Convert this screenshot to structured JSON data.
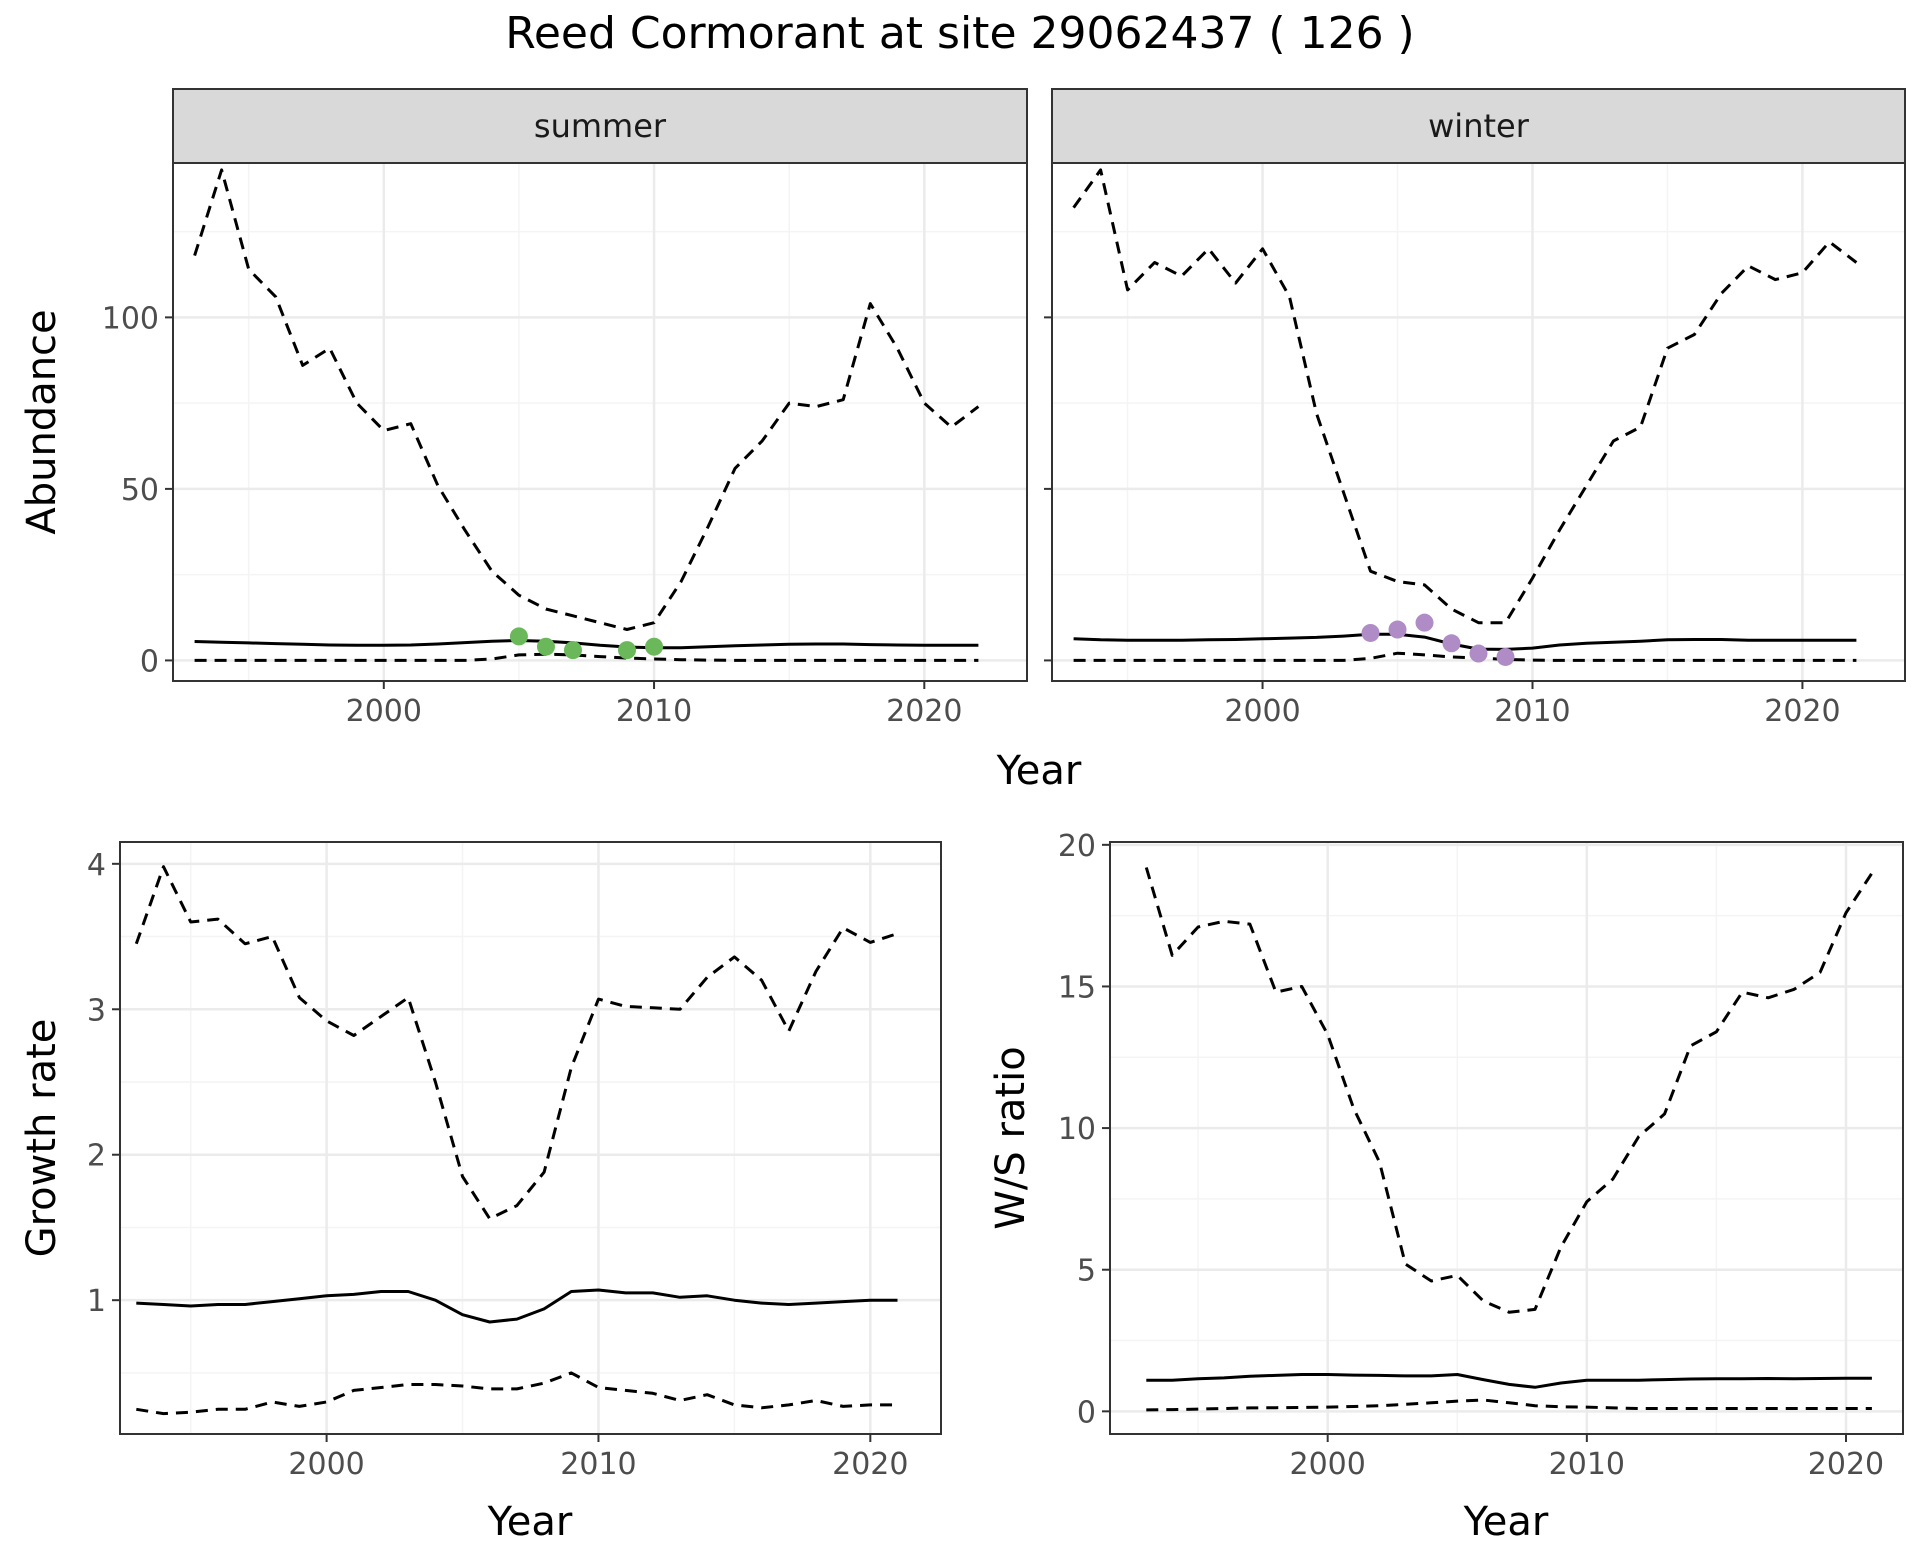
{
  "title": "Reed Cormorant at site 29062437 ( 126 )",
  "colors": {
    "summer_points": "#6ab85a",
    "winter_points": "#b08cc6",
    "grid_major": "#ebebeb",
    "grid_minor": "#f4f4f4",
    "strip_fill": "#d9d9d9",
    "line": "#000000"
  },
  "chart_data": [
    {
      "type": "line",
      "panel": "abundance-summer",
      "strip": "summer",
      "ylabel": "Abundance",
      "xlim": [
        1992.2,
        2023.8
      ],
      "ylim": [
        -6,
        145
      ],
      "x_ticks": [
        2000,
        2010,
        2020
      ],
      "x_tick_labels": [
        "2000",
        "2010",
        "2020"
      ],
      "y_ticks": [
        0,
        50,
        100
      ],
      "y_tick_labels": [
        "0",
        "50",
        "100"
      ],
      "x": [
        1993,
        1994,
        1995,
        1996,
        1997,
        1998,
        1999,
        2000,
        2001,
        2002,
        2003,
        2004,
        2005,
        2006,
        2007,
        2008,
        2009,
        2010,
        2011,
        2012,
        2013,
        2014,
        2015,
        2016,
        2017,
        2018,
        2019,
        2020,
        2021,
        2022
      ],
      "series": [
        {
          "style": "dashed",
          "values": [
            118,
            143,
            114,
            106,
            86,
            91,
            75,
            67,
            69,
            51,
            38,
            26,
            19,
            15,
            13,
            11,
            9,
            11,
            23,
            39,
            56,
            64,
            75,
            74,
            76,
            104,
            91,
            75,
            68,
            74
          ]
        },
        {
          "style": "solid",
          "values": [
            5.5,
            5.3,
            5.1,
            4.9,
            4.7,
            4.5,
            4.4,
            4.4,
            4.5,
            4.8,
            5.2,
            5.6,
            5.8,
            5.6,
            5.1,
            4.4,
            3.9,
            3.7,
            3.7,
            4.0,
            4.3,
            4.5,
            4.7,
            4.8,
            4.8,
            4.6,
            4.5,
            4.4,
            4.4,
            4.4
          ]
        },
        {
          "style": "dashed",
          "values": [
            0,
            0,
            0,
            0,
            0,
            0,
            0,
            0,
            0,
            0,
            0,
            0.4,
            1.6,
            1.8,
            1.6,
            1.1,
            0.7,
            0.4,
            0.2,
            0.1,
            0,
            0,
            0,
            0,
            0,
            0,
            0,
            0,
            0,
            0
          ]
        }
      ],
      "points": {
        "x": [
          2005,
          2006,
          2007,
          2009,
          2010
        ],
        "y": [
          7,
          4,
          3,
          3,
          4
        ],
        "color": "#6ab85a"
      }
    },
    {
      "type": "line",
      "panel": "abundance-winter",
      "strip": "winter",
      "xlim": [
        1992.2,
        2023.8
      ],
      "ylim": [
        -6,
        145
      ],
      "x_ticks": [
        2000,
        2010,
        2020
      ],
      "x_tick_labels": [
        "2000",
        "2010",
        "2020"
      ],
      "y_ticks": [
        0,
        50,
        100
      ],
      "x": [
        1993,
        1994,
        1995,
        1996,
        1997,
        1998,
        1999,
        2000,
        2001,
        2002,
        2003,
        2004,
        2005,
        2006,
        2007,
        2008,
        2009,
        2010,
        2011,
        2012,
        2013,
        2014,
        2015,
        2016,
        2017,
        2018,
        2019,
        2020,
        2021,
        2022
      ],
      "series": [
        {
          "style": "dashed",
          "values": [
            132,
            143,
            108,
            116,
            112,
            120,
            110,
            120,
            106,
            72,
            49,
            26,
            23,
            22,
            15,
            11,
            11,
            24,
            38,
            51,
            64,
            68,
            91,
            95,
            107,
            115,
            111,
            113,
            122,
            116
          ]
        },
        {
          "style": "solid",
          "values": [
            6.3,
            6,
            5.9,
            5.9,
            5.9,
            6,
            6.1,
            6.3,
            6.5,
            6.7,
            7.1,
            7.6,
            7.6,
            6.8,
            4.8,
            3.3,
            3.2,
            3.6,
            4.5,
            5,
            5.3,
            5.6,
            6,
            6.1,
            6.1,
            5.9,
            5.9,
            5.9,
            5.9,
            5.9
          ]
        },
        {
          "style": "dashed",
          "values": [
            0,
            0,
            0,
            0,
            0,
            0,
            0,
            0,
            0,
            0,
            0,
            0.6,
            2.1,
            1.6,
            1.0,
            0.7,
            0.3,
            0.1,
            0,
            0,
            0,
            0,
            0,
            0,
            0,
            0,
            0,
            0,
            0,
            0
          ]
        }
      ],
      "points": {
        "x": [
          2004,
          2005,
          2006,
          2007,
          2008,
          2009
        ],
        "y": [
          8,
          9,
          11,
          5,
          2,
          1
        ],
        "color": "#b08cc6"
      }
    },
    {
      "type": "line",
      "panel": "growth-rate",
      "xlabel": "Year",
      "ylabel": "Growth rate",
      "xlim": [
        1992.4,
        2022.6
      ],
      "ylim": [
        0.08,
        4.15
      ],
      "x_ticks": [
        2000,
        2010,
        2020
      ],
      "x_tick_labels": [
        "2000",
        "2010",
        "2020"
      ],
      "y_ticks": [
        1,
        2,
        3,
        4
      ],
      "y_tick_labels": [
        "1",
        "2",
        "3",
        "4"
      ],
      "x": [
        1993,
        1994,
        1995,
        1996,
        1997,
        1998,
        1999,
        2000,
        2001,
        2002,
        2003,
        2004,
        2005,
        2006,
        2007,
        2008,
        2009,
        2010,
        2011,
        2012,
        2013,
        2014,
        2015,
        2016,
        2017,
        2018,
        2019,
        2020,
        2021
      ],
      "series": [
        {
          "style": "dashed",
          "values": [
            3.45,
            3.98,
            3.6,
            3.62,
            3.45,
            3.5,
            3.08,
            2.92,
            2.82,
            2.95,
            3.08,
            2.5,
            1.85,
            1.56,
            1.65,
            1.88,
            2.6,
            3.07,
            3.02,
            3.01,
            3.0,
            3.22,
            3.36,
            3.2,
            2.85,
            3.26,
            3.56,
            3.46,
            3.52
          ]
        },
        {
          "style": "solid",
          "values": [
            0.98,
            0.97,
            0.96,
            0.97,
            0.97,
            0.99,
            1.01,
            1.03,
            1.04,
            1.06,
            1.06,
            1.0,
            0.9,
            0.85,
            0.87,
            0.94,
            1.06,
            1.07,
            1.05,
            1.05,
            1.02,
            1.03,
            1.0,
            0.98,
            0.97,
            0.98,
            0.99,
            1.0,
            1.0
          ]
        },
        {
          "style": "dashed",
          "values": [
            0.25,
            0.22,
            0.23,
            0.25,
            0.25,
            0.3,
            0.27,
            0.3,
            0.38,
            0.4,
            0.42,
            0.42,
            0.41,
            0.39,
            0.39,
            0.43,
            0.5,
            0.4,
            0.38,
            0.36,
            0.31,
            0.35,
            0.28,
            0.26,
            0.28,
            0.31,
            0.27,
            0.28,
            0.28
          ]
        }
      ]
    },
    {
      "type": "line",
      "panel": "ws-ratio",
      "xlabel": "Year",
      "ylabel": "W/S ratio",
      "xlim": [
        1991.6,
        2022.2
      ],
      "ylim": [
        -0.8,
        20.1
      ],
      "x_ticks": [
        2000,
        2010,
        2020
      ],
      "x_tick_labels": [
        "2000",
        "2010",
        "2020"
      ],
      "y_ticks": [
        0,
        5,
        10,
        15,
        20
      ],
      "y_tick_labels": [
        "0",
        "5",
        "10",
        "15",
        "20"
      ],
      "x": [
        1993,
        1994,
        1995,
        1996,
        1997,
        1998,
        1999,
        2000,
        2001,
        2002,
        2003,
        2004,
        2005,
        2006,
        2007,
        2008,
        2009,
        2010,
        2011,
        2012,
        2013,
        2014,
        2015,
        2016,
        2017,
        2018,
        2019,
        2020,
        2021
      ],
      "series": [
        {
          "style": "dashed",
          "values": [
            19.2,
            16.1,
            17.1,
            17.3,
            17.2,
            14.8,
            15.0,
            13.3,
            10.7,
            8.8,
            5.2,
            4.6,
            4.8,
            3.9,
            3.5,
            3.6,
            5.8,
            7.4,
            8.2,
            9.7,
            10.5,
            12.9,
            13.4,
            14.8,
            14.6,
            14.9,
            15.5,
            17.6,
            19.0
          ]
        },
        {
          "style": "solid",
          "values": [
            1.1,
            1.1,
            1.15,
            1.18,
            1.24,
            1.27,
            1.3,
            1.3,
            1.28,
            1.27,
            1.25,
            1.25,
            1.3,
            1.12,
            0.95,
            0.85,
            1.0,
            1.1,
            1.1,
            1.1,
            1.12,
            1.14,
            1.15,
            1.15,
            1.16,
            1.15,
            1.16,
            1.17,
            1.17
          ]
        },
        {
          "style": "dashed",
          "values": [
            0.05,
            0.06,
            0.08,
            0.1,
            0.12,
            0.13,
            0.14,
            0.15,
            0.17,
            0.2,
            0.25,
            0.3,
            0.36,
            0.4,
            0.3,
            0.2,
            0.16,
            0.15,
            0.12,
            0.1,
            0.1,
            0.1,
            0.1,
            0.1,
            0.1,
            0.1,
            0.1,
            0.1,
            0.1
          ]
        }
      ]
    }
  ]
}
